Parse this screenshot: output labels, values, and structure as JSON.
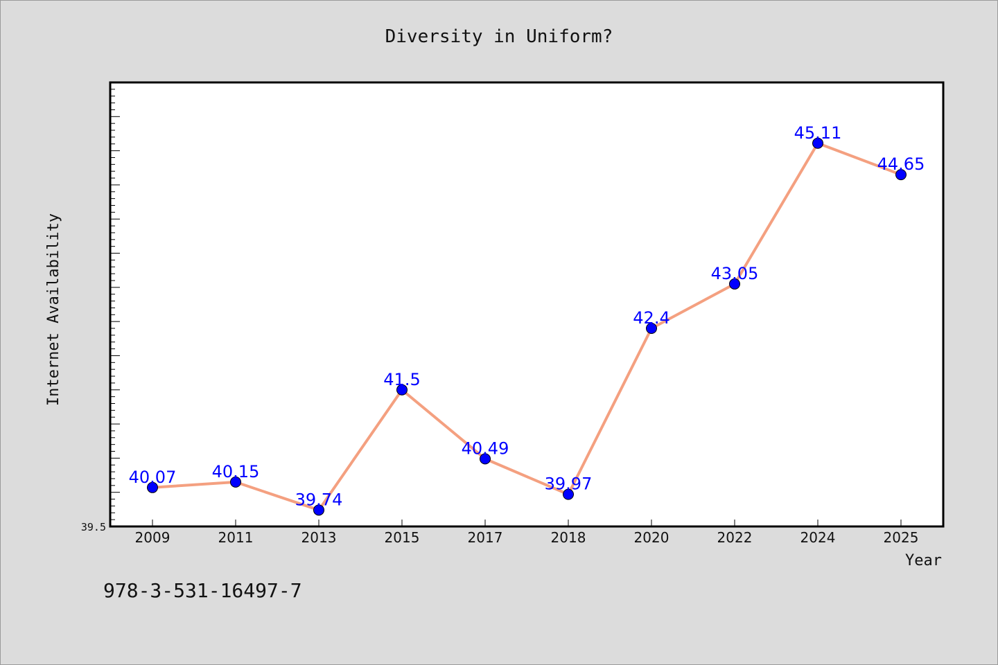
{
  "chart_data": {
    "type": "line",
    "title": "Diversity in Uniform?",
    "xlabel": "Year",
    "ylabel": "Internet Availability",
    "categories": [
      "2009",
      "2011",
      "2013",
      "2015",
      "2017",
      "2018",
      "2020",
      "2022",
      "2024",
      "2025"
    ],
    "series": [
      {
        "values": [
          40.07,
          40.15,
          39.74,
          41.5,
          40.49,
          39.97,
          42.4,
          43.05,
          45.11,
          44.65
        ],
        "data_labels": [
          "40.07",
          "40.15",
          "39.74",
          "41.5",
          "40.49",
          "39.97",
          "42.4",
          "43.05",
          "45.11",
          "44.65"
        ],
        "line_color": "#f4a080",
        "marker_color": "#0000ff"
      }
    ],
    "ylim": [
      39.5,
      46.0
    ],
    "y_tick_labels": [
      "39.5"
    ],
    "grid": false,
    "legend": "none",
    "plot_background": "#ffffff",
    "figure_background": "#dcdcdc"
  },
  "footer": {
    "isbn": "978-3-531-16497-7"
  }
}
